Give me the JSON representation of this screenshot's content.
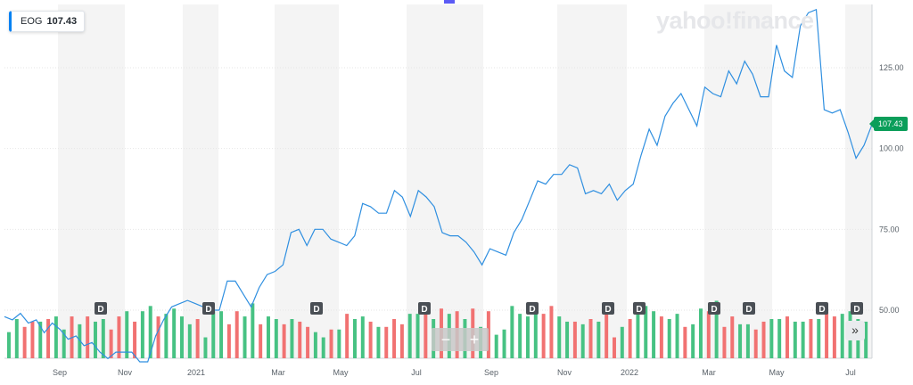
{
  "ticker": {
    "symbol": "EOG",
    "price": "107.43"
  },
  "brand": "yahoo!finance",
  "price_tag": "107.43",
  "controls": {
    "zoom_out": "−",
    "zoom_in": "+",
    "scroll_right": "»"
  },
  "colors": {
    "line": "#2f8fe0",
    "up": "#3dbf7c",
    "down": "#f06a6a",
    "band": "#f4f4f4",
    "tag": "#0b9e5a"
  },
  "dividend_marker": "D",
  "chart_data": {
    "type": "line",
    "ylim": [
      35,
      145
    ],
    "y_ticks": [
      "125.00",
      "100.00",
      "75.00",
      "50.00"
    ],
    "x_tick_labels": [
      "Sep",
      "Nov",
      "2021",
      "Mar",
      "May",
      "Jul",
      "Sep",
      "Nov",
      "2022",
      "Mar",
      "May",
      "Jul"
    ],
    "dividend_markers": 12,
    "series": [
      {
        "values": [
          48,
          47,
          49,
          46,
          47,
          43,
          46,
          44,
          41,
          42,
          39,
          40,
          37,
          35,
          37,
          37,
          37,
          34,
          34,
          42,
          47,
          51,
          52,
          53,
          52,
          51,
          50,
          50,
          59,
          59,
          55,
          51,
          57,
          61,
          62,
          64,
          74,
          75,
          70,
          75,
          75,
          72,
          71,
          70,
          73,
          83,
          82,
          80,
          80,
          87,
          85,
          79,
          87,
          85,
          82,
          74,
          73,
          73,
          71,
          68,
          64,
          69,
          68,
          67,
          74,
          78,
          84,
          90,
          89,
          92,
          92,
          95,
          94,
          86,
          87,
          86,
          89,
          84,
          87,
          89,
          98,
          106,
          101,
          110,
          114,
          117,
          112,
          107,
          119,
          117,
          116,
          124,
          120,
          127,
          123,
          116,
          116,
          132,
          124,
          122,
          138,
          142,
          143,
          112,
          111,
          112,
          105,
          97,
          101,
          107.43
        ]
      }
    ],
    "volume": {
      "values": [
        40,
        45,
        42,
        44,
        44,
        45,
        46,
        41,
        46,
        43,
        46,
        44,
        45,
        41,
        46,
        48,
        44,
        48,
        50,
        46,
        47,
        49,
        46,
        43,
        45,
        38,
        48,
        48,
        43,
        48,
        46,
        51,
        43,
        46,
        45,
        43,
        45,
        44,
        42,
        40,
        38,
        41,
        41,
        47,
        45,
        46,
        44,
        42,
        42,
        45,
        43,
        47,
        47,
        47,
        45,
        49,
        47,
        48,
        45,
        49,
        42,
        48,
        39,
        41,
        50,
        47,
        46,
        48,
        47,
        50,
        46,
        44,
        44,
        43,
        45,
        44,
        50,
        38,
        42,
        45,
        47,
        50,
        48,
        46,
        45,
        47,
        42,
        43,
        49,
        48,
        52,
        42,
        46,
        43,
        43,
        41,
        44,
        45,
        45,
        46,
        44,
        44,
        45,
        45,
        48,
        46,
        47,
        48,
        45,
        44
      ],
      "up": [
        true,
        true,
        false,
        false,
        true,
        false,
        true,
        true,
        false,
        true,
        false,
        true,
        true,
        false,
        false,
        true,
        false,
        true,
        true,
        false,
        true,
        true,
        true,
        true,
        false,
        true,
        true,
        true,
        false,
        false,
        true,
        true,
        false,
        true,
        true,
        false,
        true,
        false,
        false,
        true,
        true,
        false,
        true,
        false,
        true,
        true,
        false,
        true,
        false,
        false,
        false,
        true,
        true,
        false,
        true,
        false,
        true,
        false,
        true,
        false,
        true,
        false,
        true,
        true,
        true,
        true,
        true,
        true,
        false,
        false,
        true,
        true,
        false,
        true,
        false,
        true,
        false,
        false,
        true,
        false,
        true,
        true,
        true,
        false,
        true,
        true,
        false,
        true,
        true,
        false,
        true,
        false,
        false,
        true,
        true,
        false,
        false,
        true,
        true,
        false,
        true,
        true,
        false,
        true,
        false,
        false,
        true,
        true,
        true,
        true
      ]
    }
  }
}
